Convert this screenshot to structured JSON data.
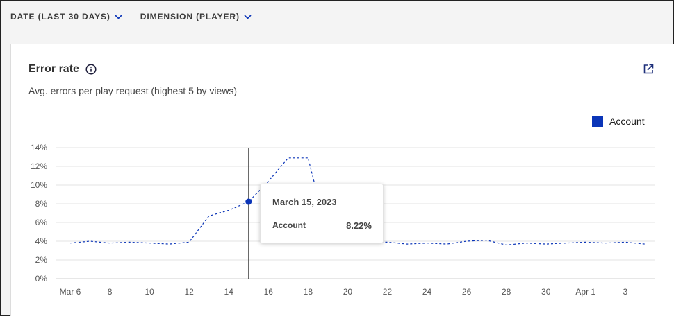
{
  "filters": [
    {
      "label": "DATE (LAST 30 DAYS)"
    },
    {
      "label": "DIMENSION (PLAYER)"
    }
  ],
  "card": {
    "title": "Error rate",
    "subtitle": "Avg. errors per play request (highest 5 by views)",
    "icons": {
      "info": "info-icon",
      "share": "share-icon"
    }
  },
  "colors": {
    "series": "#0b35b8",
    "grid": "#e3e3e3",
    "axis": "#555555"
  },
  "chart_data": {
    "type": "line",
    "title": "",
    "xlabel": "",
    "ylabel": "",
    "ylim": [
      0,
      14
    ],
    "y_ticks": [
      "0%",
      "2%",
      "4%",
      "6%",
      "8%",
      "10%",
      "12%",
      "14%"
    ],
    "x_ticks": [
      "Mar 6",
      "8",
      "10",
      "12",
      "14",
      "16",
      "18",
      "20",
      "22",
      "24",
      "26",
      "28",
      "30",
      "Apr 1",
      "3"
    ],
    "grid": true,
    "legend": "top-right",
    "x": [
      "2023-03-06",
      "2023-03-07",
      "2023-03-08",
      "2023-03-09",
      "2023-03-10",
      "2023-03-11",
      "2023-03-12",
      "2023-03-13",
      "2023-03-14",
      "2023-03-15",
      "2023-03-16",
      "2023-03-17",
      "2023-03-18",
      "2023-03-19",
      "2023-03-20",
      "2023-03-21",
      "2023-03-22",
      "2023-03-23",
      "2023-03-24",
      "2023-03-25",
      "2023-03-26",
      "2023-03-27",
      "2023-03-28",
      "2023-03-29",
      "2023-03-30",
      "2023-03-31",
      "2023-04-01",
      "2023-04-02",
      "2023-04-03",
      "2023-04-04"
    ],
    "series": [
      {
        "name": "Account",
        "values": [
          3.8,
          4.0,
          3.8,
          3.9,
          3.8,
          3.7,
          3.9,
          6.7,
          7.3,
          8.22,
          10.4,
          12.9,
          12.9,
          4.5,
          4.0,
          3.9,
          3.9,
          3.7,
          3.8,
          3.7,
          4.0,
          4.1,
          3.6,
          3.8,
          3.7,
          3.8,
          3.9,
          3.8,
          3.9,
          3.7
        ]
      }
    ],
    "tooltip": {
      "date": "March 15, 2023",
      "series": "Account",
      "value": "8.22%"
    }
  }
}
